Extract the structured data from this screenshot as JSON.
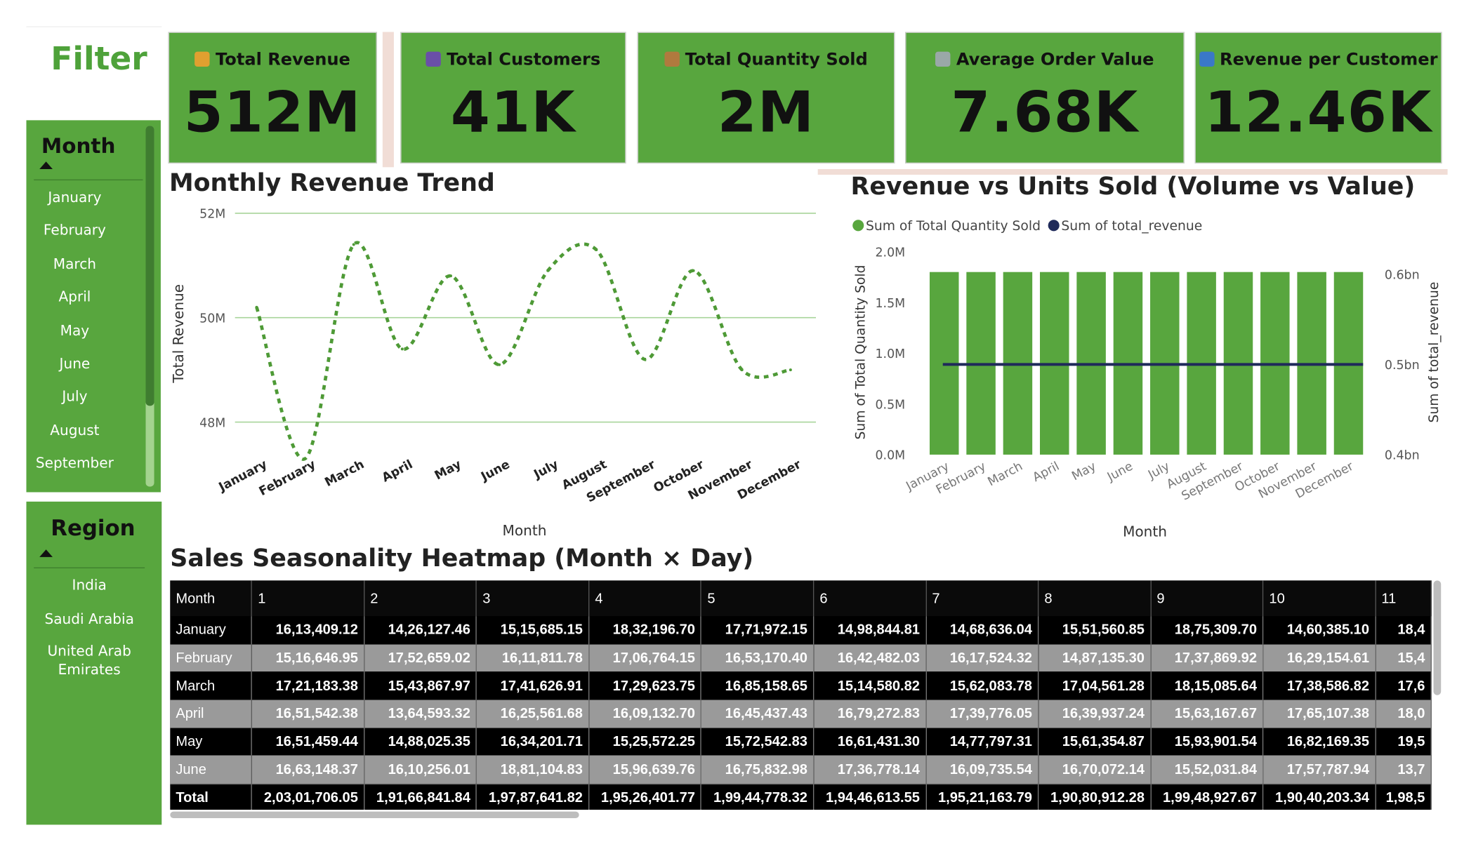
{
  "filter": {
    "title": "Filter"
  },
  "month_slicer": {
    "title": "Month",
    "items": [
      "January",
      "February",
      "March",
      "April",
      "May",
      "June",
      "July",
      "August",
      "September"
    ]
  },
  "region_slicer": {
    "title": "Region",
    "items": [
      "India",
      "Saudi Arabia",
      "United Arab",
      "Emirates"
    ]
  },
  "kpis": [
    {
      "label": "Total Revenue",
      "value": "512M",
      "icon": "money-bag-icon",
      "icon_color": "#e0a030"
    },
    {
      "label": "Total Customers",
      "value": "41K",
      "icon": "people-icon",
      "icon_color": "#6a4fa8"
    },
    {
      "label": "Total Quantity Sold",
      "value": "2M",
      "icon": "package-icon",
      "icon_color": "#b07a3e"
    },
    {
      "label": "Average Order Value",
      "value": "7.68K",
      "icon": "credit-card-icon",
      "icon_color": "#9aa8a8"
    },
    {
      "label": "Revenue per Customer",
      "value": "12.46K",
      "icon": "bar-chart-icon",
      "icon_color": "#3a78c8"
    }
  ],
  "colors": {
    "accent": "#58a63e",
    "navy": "#1f2a5a",
    "line_green": "#4e9a36"
  },
  "chart_data": [
    {
      "type": "line",
      "title": "Monthly Revenue Trend",
      "xlabel": "Month",
      "ylabel": "Total Revenue",
      "categories": [
        "January",
        "February",
        "March",
        "April",
        "May",
        "June",
        "July",
        "August",
        "September",
        "October",
        "November",
        "December"
      ],
      "values": [
        50.2,
        47.3,
        51.4,
        49.4,
        50.8,
        49.1,
        50.9,
        51.3,
        49.2,
        50.9,
        49.0,
        49.0
      ],
      "y_ticks": [
        "52M",
        "50M",
        "48M"
      ],
      "y_tick_values": [
        52,
        50,
        48
      ],
      "ylim": [
        46.1,
        52.0
      ],
      "grid": true
    },
    {
      "type": "bar",
      "title": "Revenue vs Units Sold (Volume vs Value)",
      "xlabel": "Month",
      "ylabel": "Sum of Total Quantity Sold",
      "y2label": "Sum of total_revenue",
      "legend": [
        "Sum of Total Quantity Sold",
        "Sum of total_revenue"
      ],
      "legend_position": "top-left",
      "categories": [
        "January",
        "February",
        "March",
        "April",
        "May",
        "June",
        "July",
        "August",
        "September",
        "October",
        "November",
        "December"
      ],
      "series": [
        {
          "name": "Sum of Total Quantity Sold",
          "values": [
            1.8,
            1.8,
            1.8,
            1.8,
            1.8,
            1.8,
            1.8,
            1.8,
            1.8,
            1.8,
            1.8,
            1.8
          ]
        },
        {
          "name": "Sum of total_revenue",
          "values": [
            0.5,
            0.5,
            0.5,
            0.5,
            0.5,
            0.5,
            0.5,
            0.5,
            0.5,
            0.5,
            0.5,
            0.5
          ]
        }
      ],
      "y_ticks": [
        "2.0M",
        "1.5M",
        "1.0M",
        "0.5M",
        "0.0M"
      ],
      "y_tick_values": [
        2.0,
        1.5,
        1.0,
        0.5,
        0.0
      ],
      "ylim": [
        0,
        2.0
      ],
      "y2_ticks": [
        "0.6bn",
        "0.5bn",
        "0.4bn"
      ],
      "y2_tick_values": [
        0.6,
        0.5,
        0.4
      ],
      "y2lim": [
        0.4,
        0.625
      ]
    },
    {
      "type": "heatmap",
      "title": "Sales Seasonality Heatmap (Month × Day)",
      "columns": [
        "Month",
        "1",
        "2",
        "3",
        "4",
        "5",
        "6",
        "7",
        "8",
        "9",
        "10",
        "11"
      ],
      "rows": [
        [
          "January",
          "16,13,409.12",
          "14,26,127.46",
          "15,15,685.15",
          "18,32,196.70",
          "17,71,972.15",
          "14,98,844.81",
          "14,68,636.04",
          "15,51,560.85",
          "18,75,309.70",
          "14,60,385.10",
          "18,4"
        ],
        [
          "February",
          "15,16,646.95",
          "17,52,659.02",
          "16,11,811.78",
          "17,06,764.15",
          "16,53,170.40",
          "16,42,482.03",
          "16,17,524.32",
          "14,87,135.30",
          "17,37,869.92",
          "16,29,154.61",
          "15,4"
        ],
        [
          "March",
          "17,21,183.38",
          "15,43,867.97",
          "17,41,626.91",
          "17,29,623.75",
          "16,85,158.65",
          "15,14,580.82",
          "15,62,083.78",
          "17,04,561.28",
          "18,15,085.64",
          "17,38,586.82",
          "17,6"
        ],
        [
          "April",
          "16,51,542.38",
          "13,64,593.32",
          "16,25,561.68",
          "16,09,132.70",
          "16,45,437.43",
          "16,79,272.83",
          "17,39,776.05",
          "16,39,937.24",
          "15,63,167.67",
          "17,65,107.38",
          "18,0"
        ],
        [
          "May",
          "16,51,459.44",
          "14,88,025.35",
          "16,34,201.71",
          "15,25,572.25",
          "15,72,542.83",
          "16,61,431.30",
          "14,77,797.31",
          "15,61,354.87",
          "15,93,901.54",
          "16,82,169.35",
          "19,5"
        ],
        [
          "June",
          "16,63,148.37",
          "16,10,256.01",
          "18,81,104.83",
          "15,96,639.76",
          "16,75,832.98",
          "17,36,778.14",
          "16,09,735.54",
          "16,70,072.14",
          "15,52,031.84",
          "17,57,787.94",
          "13,7"
        ]
      ],
      "total": [
        "Total",
        "2,03,01,706.05",
        "1,91,66,841.84",
        "1,97,87,641.82",
        "1,95,26,401.77",
        "1,99,44,778.32",
        "1,94,46,613.55",
        "1,95,21,163.79",
        "1,90,80,912.28",
        "1,99,48,927.67",
        "1,90,40,203.34",
        "1,98,5"
      ]
    }
  ]
}
